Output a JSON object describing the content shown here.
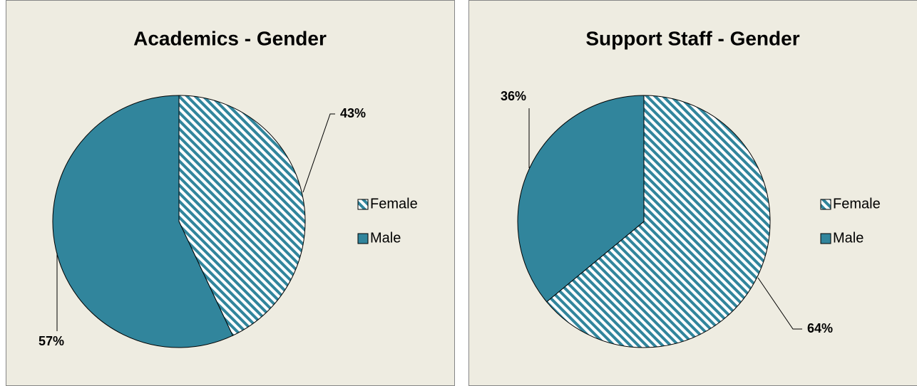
{
  "chart_data": [
    {
      "type": "pie",
      "title": "Academics - Gender",
      "categories": [
        "Female",
        "Male"
      ],
      "values": [
        43,
        57
      ],
      "value_labels": [
        "43%",
        "57%"
      ],
      "colors": [
        "#31859c",
        "#31859c"
      ],
      "patterns": [
        "hatch",
        "solid"
      ],
      "legend": "right"
    },
    {
      "type": "pie",
      "title": "Support Staff - Gender",
      "categories": [
        "Female",
        "Male"
      ],
      "values": [
        64,
        36
      ],
      "value_labels": [
        "64%",
        "36%"
      ],
      "colors": [
        "#31859c",
        "#31859c"
      ],
      "patterns": [
        "hatch",
        "solid"
      ],
      "legend": "right"
    }
  ]
}
